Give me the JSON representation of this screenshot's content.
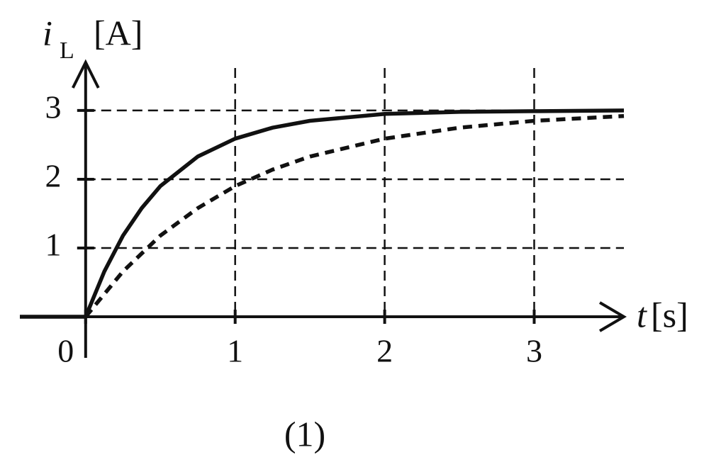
{
  "chart_data": {
    "type": "line",
    "ylabel": "i",
    "ylabel_subscript": "L",
    "yunit": "[A]",
    "xlabel": "t",
    "xunit": "[s]",
    "caption": "(1)",
    "xlim": [
      -0.44,
      3.6
    ],
    "ylim": [
      0,
      3.7
    ],
    "xticks": [
      0,
      1,
      2,
      3
    ],
    "yticks": [
      1,
      2,
      3
    ],
    "grid": true,
    "series": [
      {
        "style": "solid",
        "color": "#111111",
        "x": [
          -0.44,
          0,
          0.125,
          0.25,
          0.375,
          0.5,
          0.75,
          1,
          1.25,
          1.5,
          2,
          2.5,
          3,
          3.6
        ],
        "values": [
          0,
          0,
          0.66,
          1.18,
          1.58,
          1.9,
          2.33,
          2.59,
          2.75,
          2.85,
          2.95,
          2.98,
          2.99,
          3.0
        ]
      },
      {
        "style": "dashed",
        "color": "#111111",
        "x": [
          0,
          0.25,
          0.5,
          0.75,
          1,
          1.25,
          1.5,
          2,
          2.5,
          3,
          3.6
        ],
        "values": [
          0,
          0.66,
          1.18,
          1.58,
          1.9,
          2.14,
          2.33,
          2.59,
          2.75,
          2.85,
          2.92
        ]
      }
    ]
  }
}
